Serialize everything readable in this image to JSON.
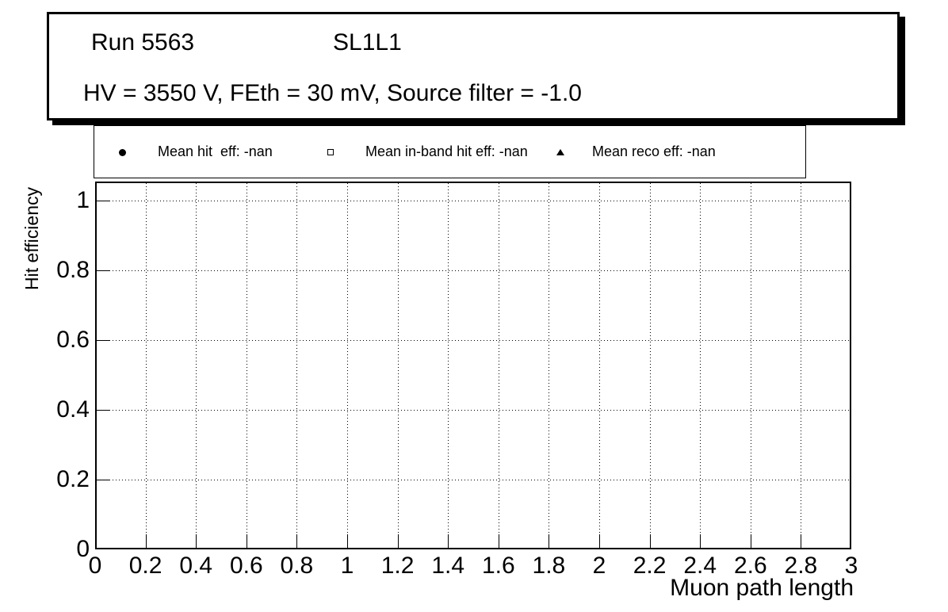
{
  "title_box": {
    "run": "Run 5563",
    "chamber": "SL1L1",
    "conditions": "HV = 3550 V, FEth = 30 mV, Source filter = -1.0"
  },
  "legend": {
    "entries": [
      {
        "marker": "filled-circle",
        "label": "Mean hit  eff: -nan"
      },
      {
        "marker": "open-square",
        "label": "Mean in-band hit eff: -nan"
      },
      {
        "marker": "filled-triangle",
        "label": "Mean reco eff: -nan"
      }
    ]
  },
  "chart_data": {
    "type": "scatter",
    "title": "",
    "xlabel": "Muon path length",
    "ylabel": "Hit efficiency",
    "xlim": [
      0,
      3
    ],
    "ylim": [
      0,
      1.055
    ],
    "x_ticks": [
      0,
      0.2,
      0.4,
      0.6,
      0.8,
      1,
      1.2,
      1.4,
      1.6,
      1.8,
      2,
      2.2,
      2.4,
      2.6,
      2.8,
      3
    ],
    "x_tick_labels": [
      "0",
      "0.2",
      "0.4",
      "0.6",
      "0.8",
      "1",
      "1.2",
      "1.4",
      "1.6",
      "1.8",
      "2",
      "2.2",
      "2.4",
      "2.6",
      "2.8",
      "3"
    ],
    "y_ticks": [
      0,
      0.2,
      0.4,
      0.6,
      0.8,
      1
    ],
    "y_tick_labels": [
      "0",
      "0.2",
      "0.4",
      "0.6",
      "0.8",
      "1"
    ],
    "grid": true,
    "grid_style": "dotted",
    "legend_position": "top",
    "series": [
      {
        "name": "Mean hit  eff: -nan",
        "marker": "filled-circle",
        "points": []
      },
      {
        "name": "Mean in-band hit eff: -nan",
        "marker": "open-square",
        "points": []
      },
      {
        "name": "Mean reco eff: -nan",
        "marker": "filled-triangle",
        "points": []
      }
    ]
  },
  "colors": {
    "foreground": "#000000",
    "background": "#ffffff"
  }
}
